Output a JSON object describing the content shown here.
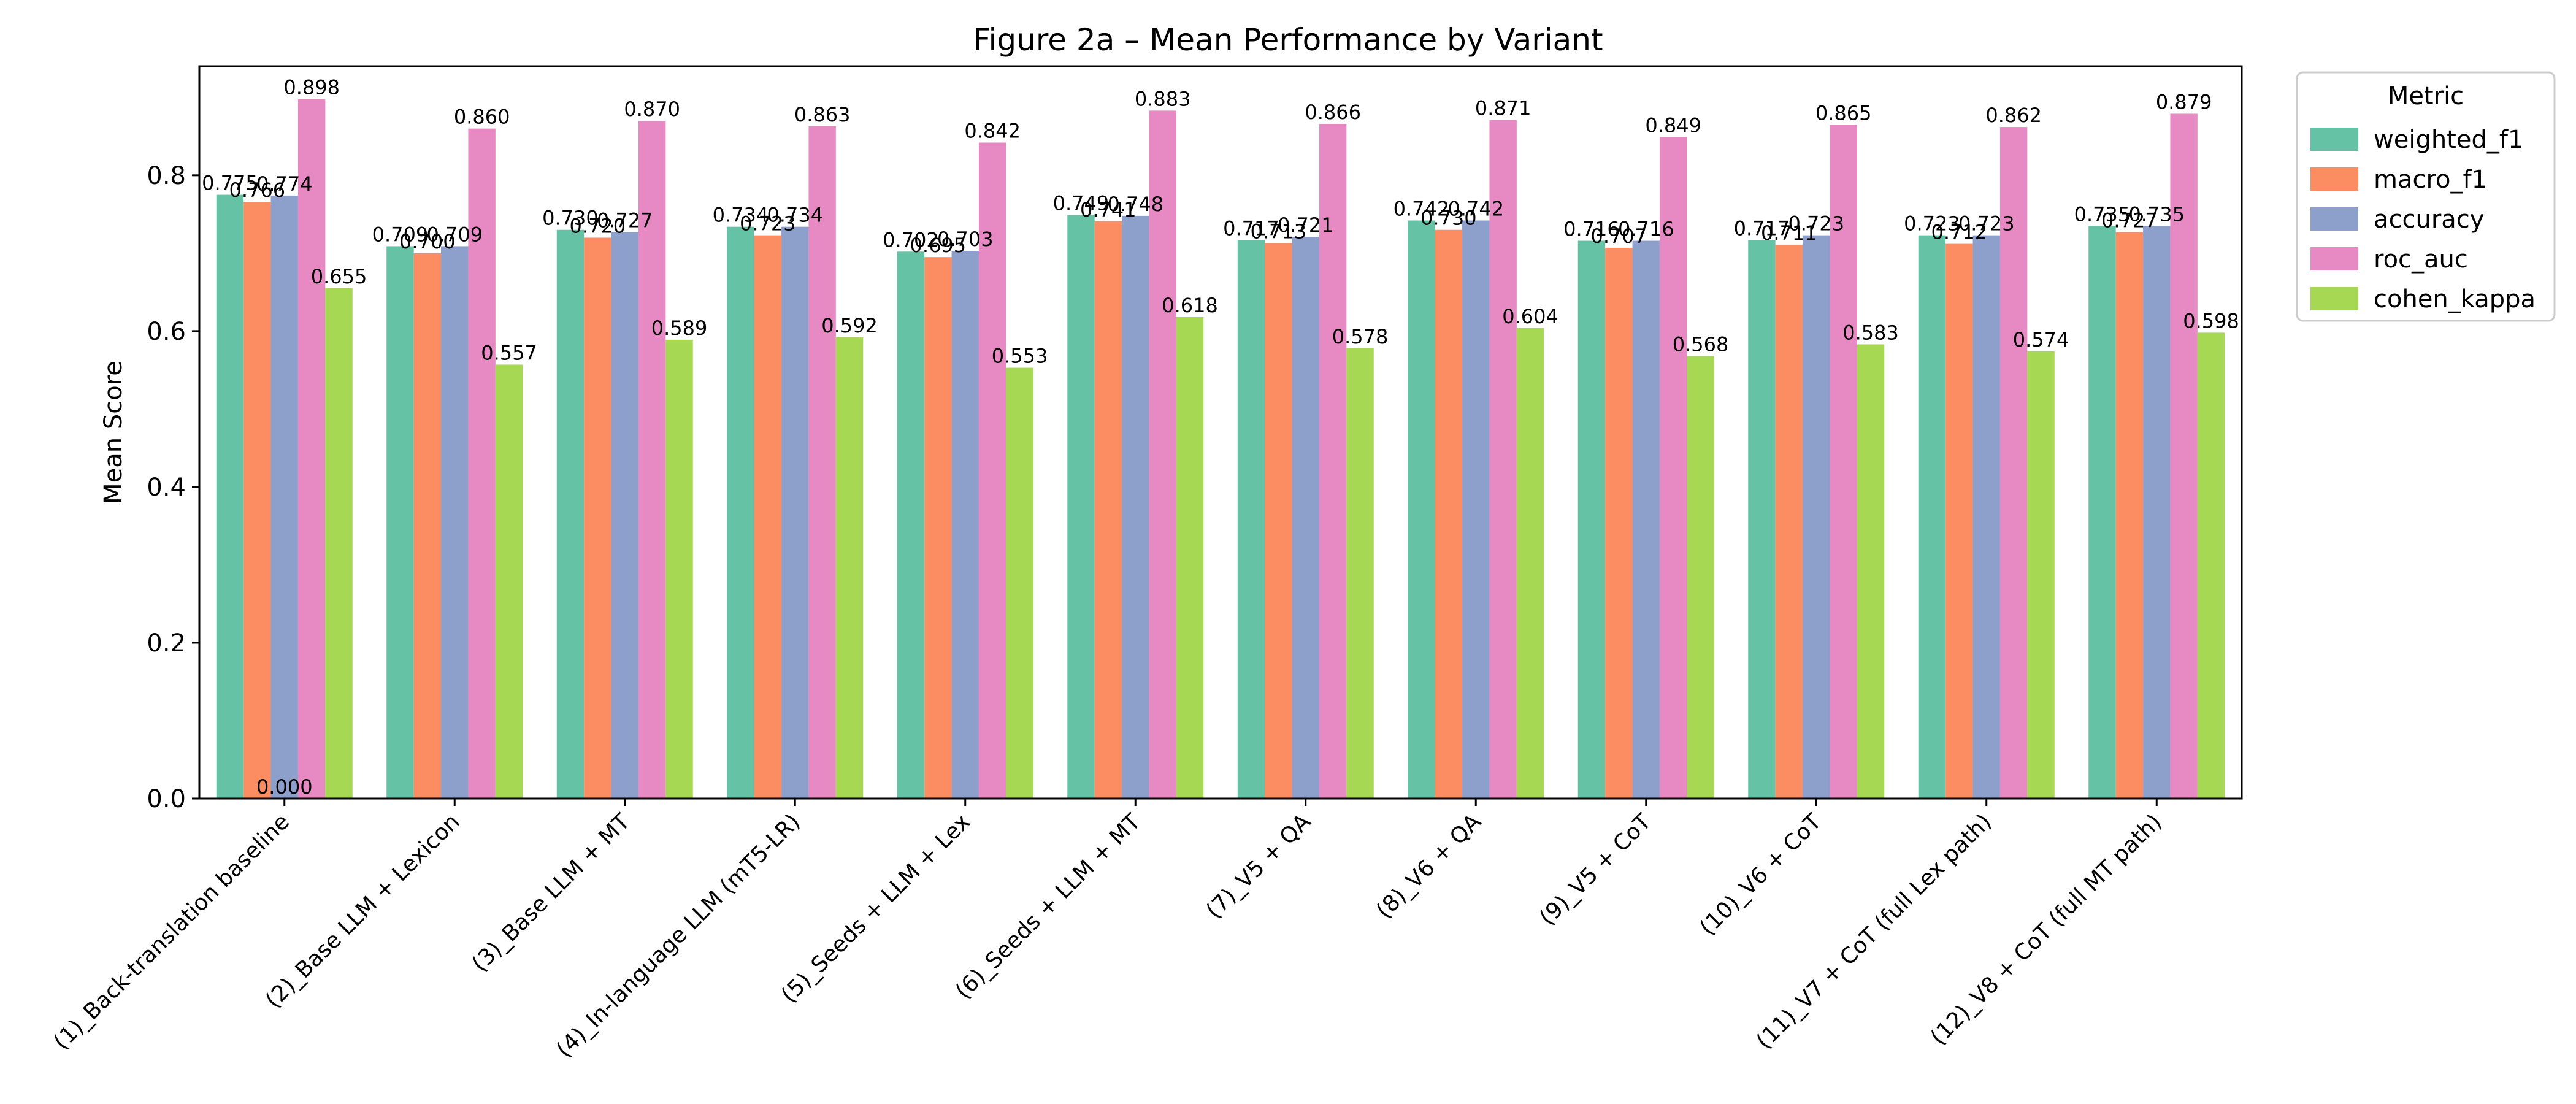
{
  "chart_data": {
    "type": "bar",
    "title": "Figure 2a – Mean Performance by Variant",
    "xlabel": "",
    "ylabel": "Mean Score",
    "ylim": [
      0,
      0.94
    ],
    "yticks": [
      "0.0",
      "0.2",
      "0.4",
      "0.6",
      "0.8"
    ],
    "grid": false,
    "legend": {
      "title": "Metric",
      "position": "outside-right-top"
    },
    "categories": [
      "(1)_Back-translation baseline",
      "(2)_Base LLM + Lexicon",
      "(3)_Base LLM + MT",
      "(4)_In-language LLM (mT5-LR)",
      "(5)_Seeds + LLM + Lex",
      "(6)_Seeds + LLM + MT",
      "(7)_V5 + QA",
      "(8)_V6 + QA",
      "(9)_V5 + CoT",
      "(10)_V6 + CoT",
      "(11)_V7 + CoT (full Lex path)",
      "(12)_V8 + CoT (full MT path)"
    ],
    "series": [
      {
        "name": "weighted_f1",
        "color": "#66c2a5",
        "values": [
          0.775,
          0.709,
          0.73,
          0.734,
          0.702,
          0.749,
          0.717,
          0.742,
          0.716,
          0.717,
          0.723,
          0.735
        ],
        "labels": [
          "0.775",
          "0.709",
          "0.730",
          "0.734",
          "0.702",
          "0.749",
          "0.717",
          "0.742",
          "0.716",
          "0.717",
          "0.723",
          "0.735"
        ]
      },
      {
        "name": "macro_f1",
        "color": "#fc8d62",
        "values": [
          0.766,
          0.7,
          0.72,
          0.723,
          0.695,
          0.741,
          0.713,
          0.73,
          0.707,
          0.711,
          0.712,
          0.727
        ],
        "labels": [
          "0.766",
          "0.700",
          "0.720",
          "0.723",
          "0.695",
          "0.741",
          "0.713",
          "0.730",
          "0.707",
          "0.711",
          "0.712",
          "0.727"
        ]
      },
      {
        "name": "accuracy",
        "color": "#8da0cb",
        "values": [
          0.774,
          0.709,
          0.727,
          0.734,
          0.703,
          0.748,
          0.721,
          0.742,
          0.716,
          0.723,
          0.723,
          0.735
        ],
        "labels": [
          "0.774",
          "0.709",
          "0.727",
          "0.734",
          "0.703",
          "0.748",
          "0.721",
          "0.742",
          "0.716",
          "0.723",
          "0.723",
          "0.735"
        ]
      },
      {
        "name": "roc_auc",
        "color": "#e78ac3",
        "values": [
          0.898,
          0.86,
          0.87,
          0.863,
          0.842,
          0.883,
          0.866,
          0.871,
          0.849,
          0.865,
          0.862,
          0.879
        ],
        "labels": [
          "0.898",
          "0.860",
          "0.870",
          "0.863",
          "0.842",
          "0.883",
          "0.866",
          "0.871",
          "0.849",
          "0.865",
          "0.862",
          "0.879"
        ]
      },
      {
        "name": "cohen_kappa",
        "color": "#a6d854",
        "values": [
          0.655,
          0.557,
          0.589,
          0.592,
          0.553,
          0.618,
          0.578,
          0.604,
          0.568,
          0.583,
          0.574,
          0.598
        ],
        "labels": [
          "0.655",
          "0.557",
          "0.589",
          "0.592",
          "0.553",
          "0.618",
          "0.578",
          "0.604",
          "0.568",
          "0.583",
          "0.574",
          "0.598"
        ]
      }
    ],
    "extra_annotations": [
      {
        "text": "0.000",
        "category_index": 0,
        "value": 0.0
      }
    ]
  }
}
